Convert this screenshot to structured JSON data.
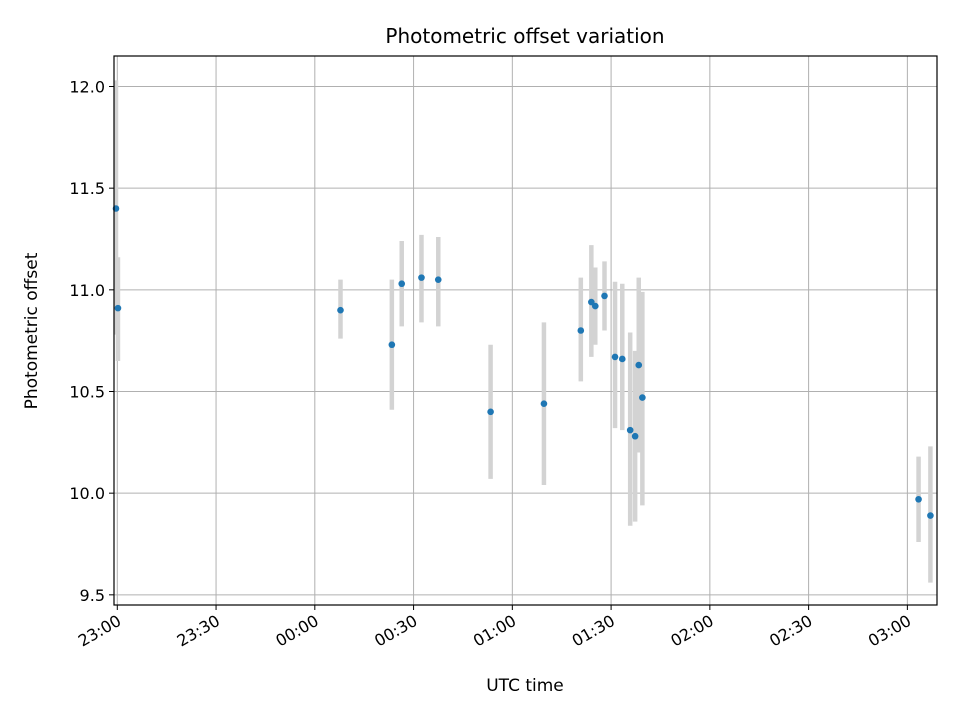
{
  "chart_data": {
    "type": "scatter",
    "title": "Photometric offset variation",
    "xlabel": "UTC time",
    "ylabel": "Photometric offset",
    "xlim": [
      "22:59",
      "03:09"
    ],
    "ylim": [
      9.45,
      12.15
    ],
    "grid": true,
    "marker_color": "#1f77b4",
    "errorbar_color": "#d3d3d3",
    "x_ticks": [
      "23:00",
      "23:30",
      "00:00",
      "00:30",
      "01:00",
      "01:30",
      "02:00",
      "02:30",
      "03:00"
    ],
    "y_ticks": [
      "9.5",
      "10.0",
      "10.5",
      "11.0",
      "11.5",
      "12.0"
    ],
    "points": [
      {
        "x": "22:59:36",
        "y": 11.4,
        "yerr_low": 10.78,
        "yerr_high": 12.03
      },
      {
        "x": "23:00:12",
        "y": 10.91,
        "yerr_low": 10.65,
        "yerr_high": 11.16
      },
      {
        "x": "00:07:48",
        "y": 10.9,
        "yerr_low": 10.76,
        "yerr_high": 11.05
      },
      {
        "x": "00:23:24",
        "y": 10.73,
        "yerr_low": 10.41,
        "yerr_high": 11.05
      },
      {
        "x": "00:26:24",
        "y": 11.03,
        "yerr_low": 10.82,
        "yerr_high": 11.24
      },
      {
        "x": "00:32:24",
        "y": 11.06,
        "yerr_low": 10.84,
        "yerr_high": 11.27
      },
      {
        "x": "00:37:30",
        "y": 11.05,
        "yerr_low": 10.82,
        "yerr_high": 11.26
      },
      {
        "x": "00:53:24",
        "y": 10.4,
        "yerr_low": 10.07,
        "yerr_high": 10.73
      },
      {
        "x": "01:09:36",
        "y": 10.44,
        "yerr_low": 10.04,
        "yerr_high": 10.84
      },
      {
        "x": "01:20:48",
        "y": 10.8,
        "yerr_low": 10.55,
        "yerr_high": 11.06
      },
      {
        "x": "01:24:00",
        "y": 10.94,
        "yerr_low": 10.67,
        "yerr_high": 11.22
      },
      {
        "x": "01:25:12",
        "y": 10.92,
        "yerr_low": 10.73,
        "yerr_high": 11.11
      },
      {
        "x": "01:28:00",
        "y": 10.97,
        "yerr_low": 10.8,
        "yerr_high": 11.14
      },
      {
        "x": "01:31:12",
        "y": 10.67,
        "yerr_low": 10.32,
        "yerr_high": 11.04
      },
      {
        "x": "01:33:24",
        "y": 10.66,
        "yerr_low": 10.31,
        "yerr_high": 11.03
      },
      {
        "x": "01:35:48",
        "y": 10.31,
        "yerr_low": 9.84,
        "yerr_high": 10.79
      },
      {
        "x": "01:37:18",
        "y": 10.28,
        "yerr_low": 9.86,
        "yerr_high": 10.7
      },
      {
        "x": "01:38:24",
        "y": 10.63,
        "yerr_low": 10.2,
        "yerr_high": 11.06
      },
      {
        "x": "01:39:30",
        "y": 10.47,
        "yerr_low": 9.94,
        "yerr_high": 10.99
      },
      {
        "x": "03:03:24",
        "y": 9.97,
        "yerr_low": 9.76,
        "yerr_high": 10.18
      },
      {
        "x": "03:07:00",
        "y": 9.89,
        "yerr_low": 9.56,
        "yerr_high": 10.23
      }
    ]
  }
}
